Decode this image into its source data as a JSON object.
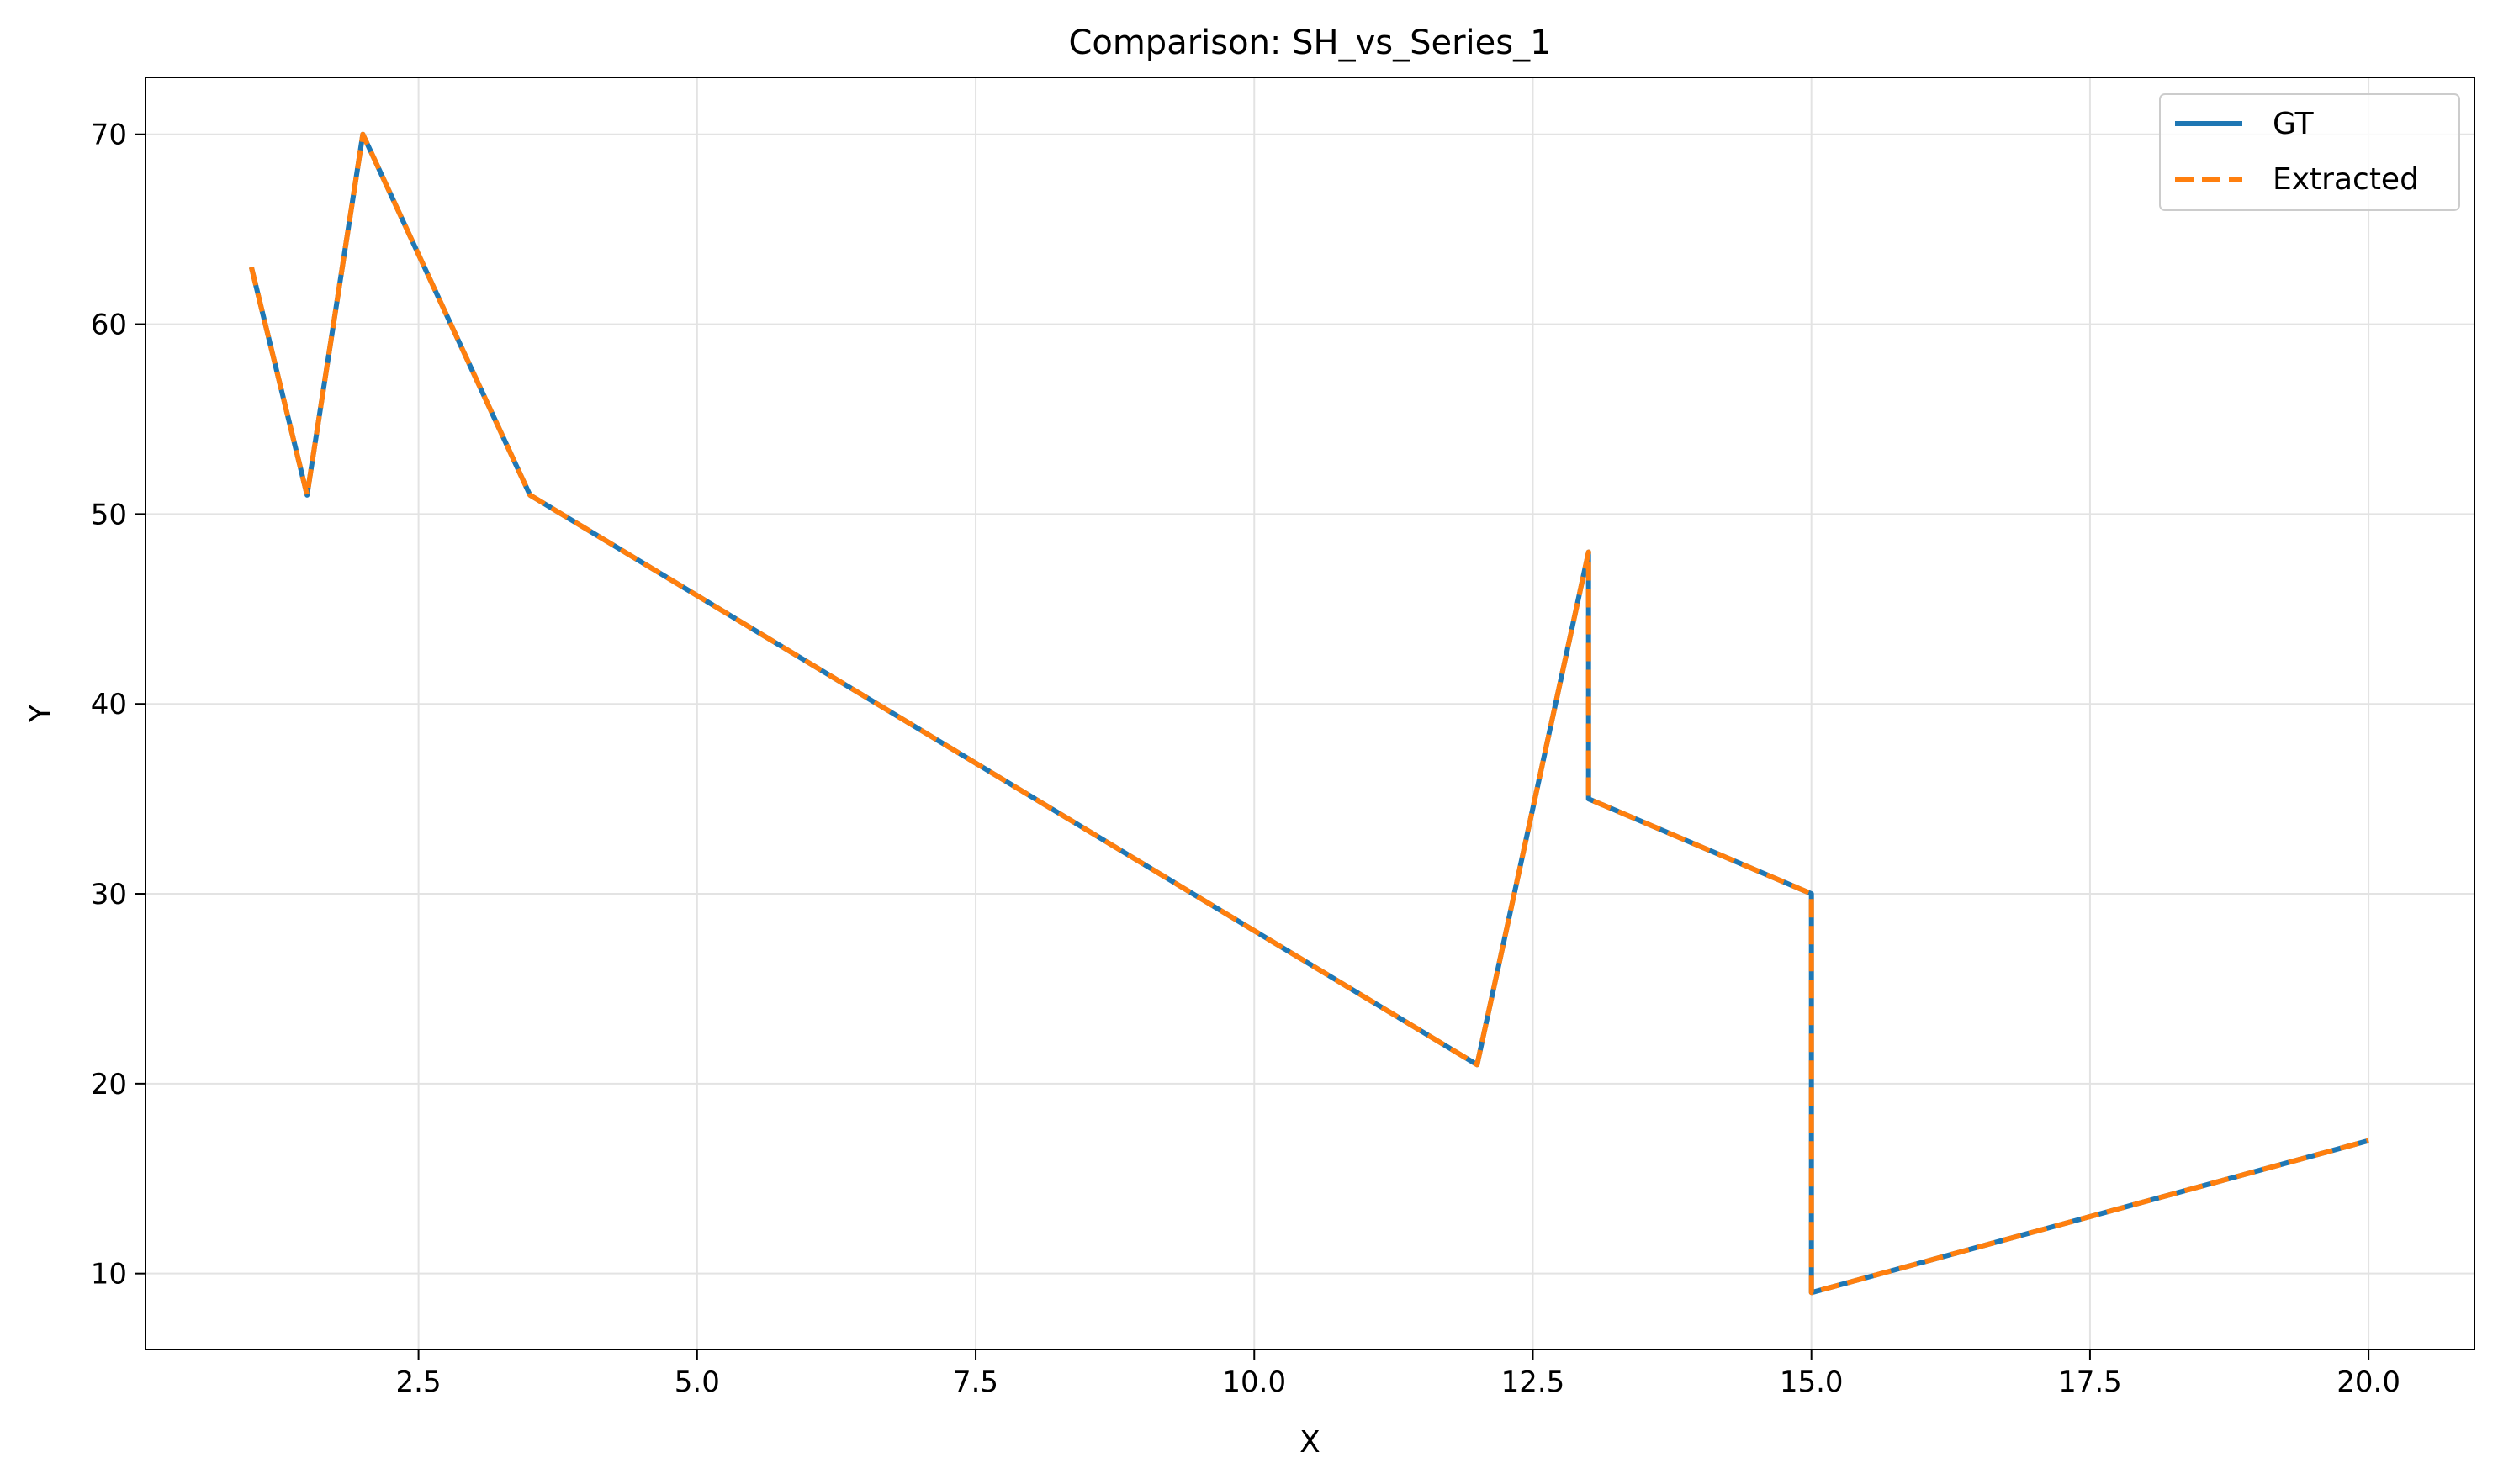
{
  "chart_data": {
    "type": "line",
    "title": "Comparison: SH_vs_Series_1",
    "xlabel": "X",
    "ylabel": "Y",
    "xlim": [
      0.05,
      20.95
    ],
    "ylim": [
      6.0,
      73.0
    ],
    "xticks": [
      2.5,
      5.0,
      7.5,
      10.0,
      12.5,
      15.0,
      17.5,
      20.0
    ],
    "yticks": [
      10,
      20,
      30,
      40,
      50,
      60,
      70
    ],
    "grid": true,
    "legend_position": "top-right",
    "series": [
      {
        "name": "GT",
        "color": "#1f77b4",
        "style": "solid",
        "x": [
          1.0,
          1.5,
          2.0,
          3.5,
          12.0,
          13.0,
          13.0,
          15.0,
          15.0,
          20.0
        ],
        "y": [
          63,
          51,
          70,
          51,
          21,
          48,
          35,
          30,
          9,
          17
        ]
      },
      {
        "name": "Extracted",
        "color": "#ff7f0e",
        "style": "dashed",
        "x": [
          1.0,
          1.5,
          2.0,
          3.5,
          12.0,
          13.0,
          13.0,
          15.0,
          15.0,
          20.0
        ],
        "y": [
          63,
          51,
          70,
          51,
          21,
          48,
          35,
          30,
          9,
          17
        ]
      }
    ]
  }
}
